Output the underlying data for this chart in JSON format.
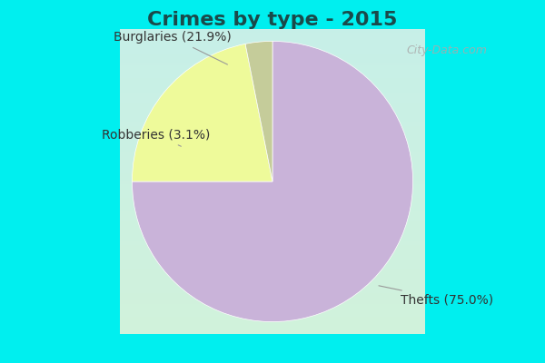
{
  "title": "Crimes by type - 2015",
  "slices": [
    {
      "label": "Thefts (75.0%)",
      "value": 75.0,
      "color": "#C9B3D9"
    },
    {
      "label": "Burglaries (21.9%)",
      "value": 21.9,
      "color": "#EEFA9A"
    },
    {
      "label": "Robberies (3.1%)",
      "value": 3.1,
      "color": "#C5CC9A"
    }
  ],
  "border_color": "#00EFEF",
  "bg_gradient_top": "#C8F0E8",
  "bg_gradient_bottom": "#D8F0E0",
  "title_fontsize": 16,
  "label_fontsize": 10,
  "watermark": "City-Data.com",
  "startangle": 90,
  "border_width": 8
}
